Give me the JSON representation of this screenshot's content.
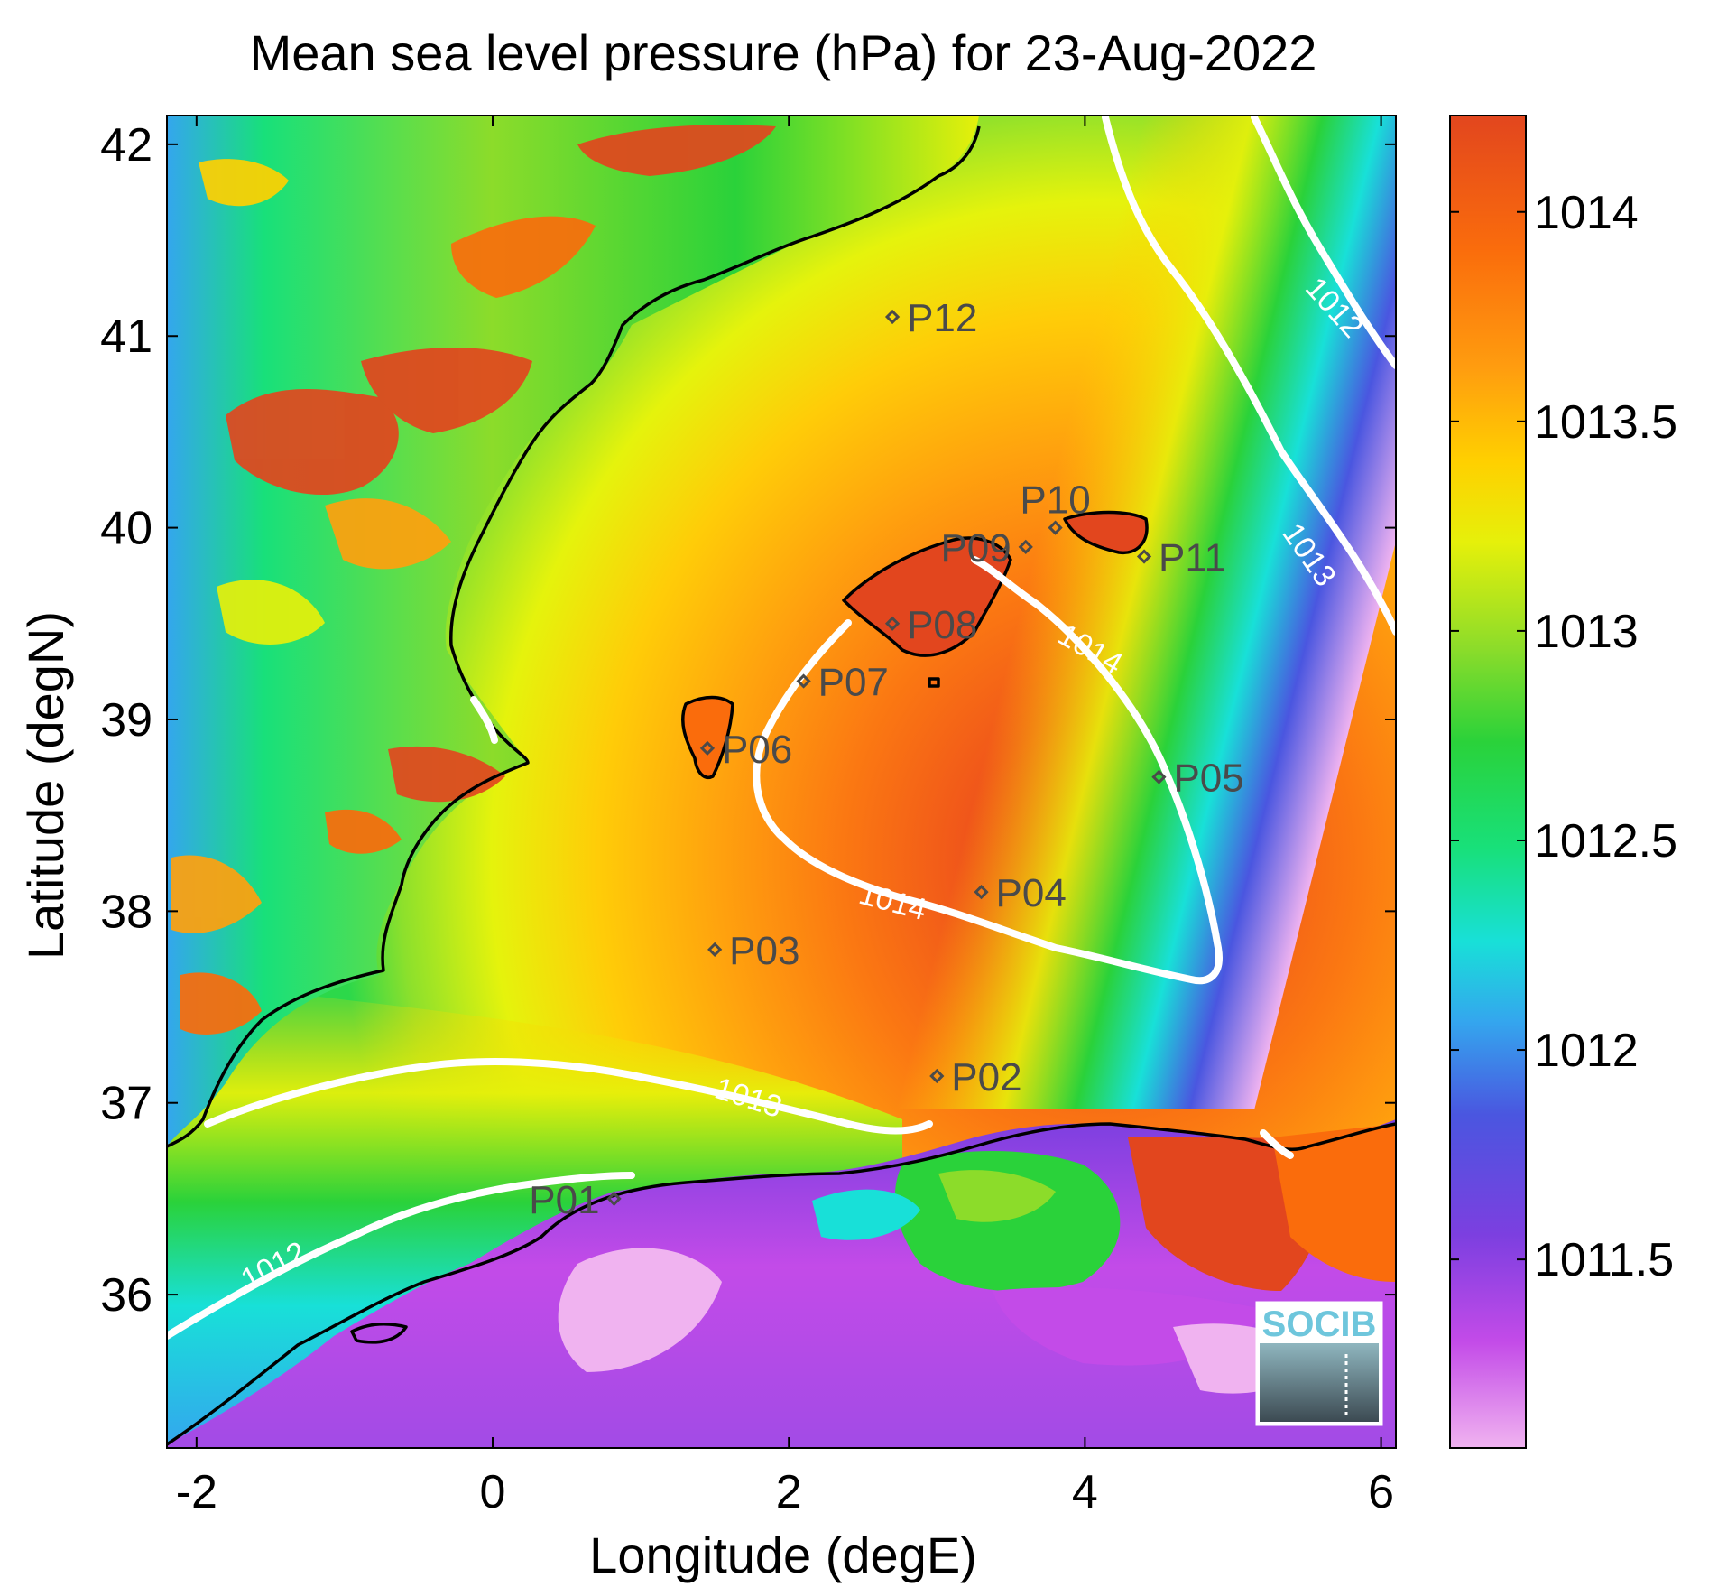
{
  "title": "Mean sea level pressure (hPa) for 23-Aug-2022",
  "axes": {
    "xlabel": "Longitude (degE)",
    "ylabel": "Latitude (degN)",
    "xlim": [
      -2.2,
      6.1
    ],
    "ylim": [
      35.2,
      42.15
    ],
    "xticks": [
      -2,
      0,
      2,
      4,
      6
    ],
    "yticks": [
      36,
      37,
      38,
      39,
      40,
      41,
      42
    ]
  },
  "colorbar": {
    "range": [
      1011.05,
      1014.23
    ],
    "ticks": [
      1011.5,
      1012,
      1012.5,
      1013,
      1013.5,
      1014
    ],
    "tick_labels": [
      "1011.5",
      "1012",
      "1012.5",
      "1013",
      "1013.5",
      "1014"
    ],
    "colormap": [
      "#f0b3f0",
      "#c34be8",
      "#7c3fe0",
      "#4a56e0",
      "#34a6ee",
      "#18e0d8",
      "#18e07a",
      "#2ad23a",
      "#8cdc2a",
      "#e6f00a",
      "#ffd000",
      "#ff9d0f",
      "#fa6c0c",
      "#e2461e"
    ]
  },
  "points": [
    {
      "label": "P01",
      "lon": 0.82,
      "lat": 36.5,
      "label_side": "left"
    },
    {
      "label": "P02",
      "lon": 3.0,
      "lat": 37.14,
      "label_side": "right"
    },
    {
      "label": "P03",
      "lon": 1.5,
      "lat": 37.8,
      "label_side": "right"
    },
    {
      "label": "P04",
      "lon": 3.3,
      "lat": 38.1,
      "label_side": "right"
    },
    {
      "label": "P05",
      "lon": 4.5,
      "lat": 38.7,
      "label_side": "right"
    },
    {
      "label": "P06",
      "lon": 1.45,
      "lat": 38.85,
      "label_side": "right"
    },
    {
      "label": "P07",
      "lon": 2.1,
      "lat": 39.2,
      "label_side": "right"
    },
    {
      "label": "P08",
      "lon": 2.7,
      "lat": 39.5,
      "label_side": "right"
    },
    {
      "label": "P09",
      "lon": 3.6,
      "lat": 39.9,
      "label_side": "left"
    },
    {
      "label": "P10",
      "lon": 3.8,
      "lat": 40.0,
      "label_side": "above"
    },
    {
      "label": "P11",
      "lon": 4.4,
      "lat": 39.85,
      "label_side": "right"
    },
    {
      "label": "P12",
      "lon": 2.7,
      "lat": 41.1,
      "label_side": "right"
    }
  ],
  "contours": [
    {
      "level": "1014",
      "labels": 2
    },
    {
      "level": "1013",
      "labels": 2
    },
    {
      "level": "1012",
      "labels": 2
    }
  ],
  "logo": {
    "text": "SOCIB",
    "accent": "#6ec6dc"
  }
}
